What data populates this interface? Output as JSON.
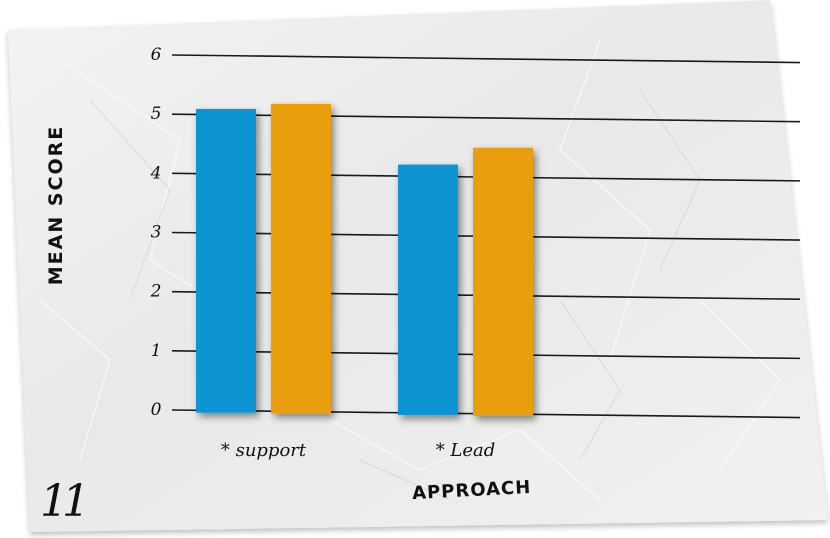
{
  "page_number": "11",
  "chart_data": {
    "type": "bar",
    "title": "",
    "xlabel": "APPROACH",
    "ylabel": "MEAN SCORE",
    "categories": [
      "* support",
      "* Lead"
    ],
    "series": [
      {
        "values": [
          5.1,
          4.2
        ]
      },
      {
        "values": [
          5.2,
          4.5
        ]
      }
    ],
    "y_ticks": [
      "0",
      "1",
      "2",
      "3",
      "4",
      "5",
      "6"
    ],
    "ylim": [
      0,
      6
    ],
    "grid": true,
    "legend": "none",
    "colors": {
      "series": [
        "#0895d3",
        "#e99e0a"
      ],
      "gridline": "#1a1a1a",
      "paper": "#ededed",
      "ink": "#111111"
    }
  }
}
